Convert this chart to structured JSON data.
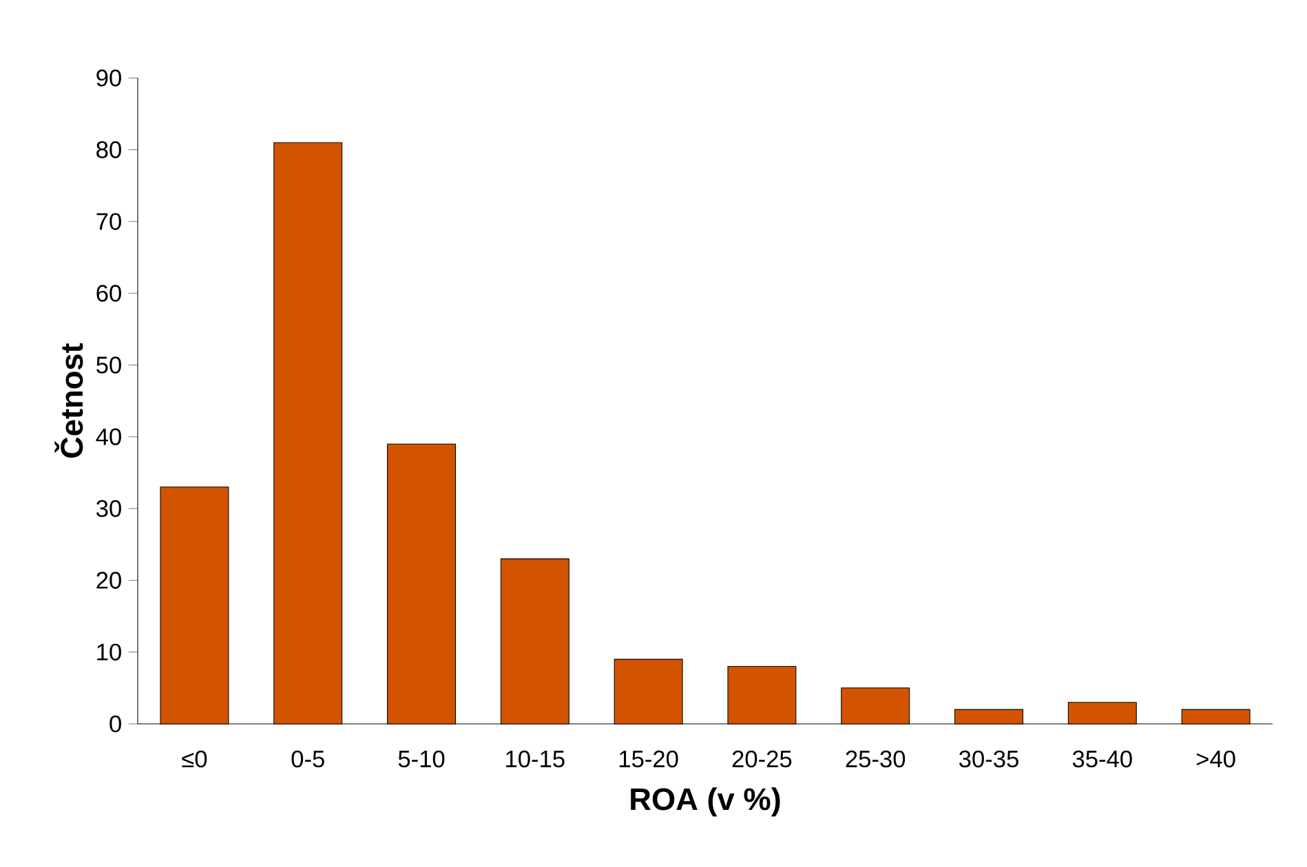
{
  "chart_data": {
    "type": "bar",
    "xlabel": "ROA (v %)",
    "ylabel": "Četnost",
    "categories": [
      "≤0",
      "0-5",
      "5-10",
      "10-15",
      "15-20",
      "20-25",
      "25-30",
      "30-35",
      "35-40",
      ">40"
    ],
    "values": [
      33,
      81,
      39,
      23,
      9,
      8,
      5,
      2,
      3,
      2
    ],
    "color": "#d35400",
    "ylim": [
      0,
      90
    ],
    "yticks": [
      0,
      10,
      20,
      30,
      40,
      50,
      60,
      70,
      80,
      90
    ],
    "grid": false
  }
}
